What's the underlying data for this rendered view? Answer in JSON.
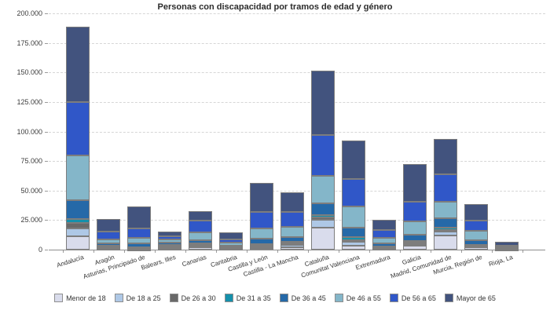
{
  "title": "Personas con discapacidad por tramos de edad y género",
  "chart_data": {
    "type": "bar",
    "stacked": true,
    "title": "Personas con discapacidad por tramos de edad y género",
    "xlabel": "",
    "ylabel": "",
    "ylim": [
      0,
      200000
    ],
    "ytick_step": 25000,
    "ytick_labels": [
      "0",
      "25.000",
      "50.000",
      "75.000",
      "100.000",
      "125.000",
      "150.000",
      "175.000",
      "200.000"
    ],
    "grid": "horizontal-dashed",
    "legend_position": "bottom",
    "categories": [
      "Andalucía",
      "Aragón",
      "Asturias, Principado de",
      "Balears, Illes",
      "Canarias",
      "Cantabria",
      "Castilla y León",
      "Castilla - La Mancha",
      "Cataluña",
      "Comunitat Valenciana",
      "Extremadura",
      "Galicia",
      "Madrid, Comunidad de",
      "Murcia, Región de",
      "Rioja, La"
    ],
    "series": [
      {
        "name": "Menor de 18",
        "color": "#d9dcec",
        "values": [
          11300,
          800,
          150,
          660,
          1800,
          900,
          1000,
          2000,
          18600,
          3100,
          760,
          3540,
          11960,
          2000,
          150
        ]
      },
      {
        "name": "De 18 a 25",
        "color": "#aec8e6",
        "values": [
          6600,
          700,
          150,
          1530,
          1070,
          500,
          1000,
          1800,
          6400,
          3350,
          600,
          1330,
          3120,
          700,
          150
        ]
      },
      {
        "name": "De 26 a 30",
        "color": "#696969",
        "values": [
          4700,
          900,
          1100,
          800,
          1130,
          400,
          1300,
          1330,
          2000,
          1750,
          700,
          1100,
          1720,
          750,
          200
        ]
      },
      {
        "name": "De 31 a 35",
        "color": "#1590ab",
        "values": [
          3300,
          800,
          850,
          800,
          1130,
          400,
          1300,
          1330,
          2200,
          2200,
          600,
          1130,
          1800,
          750,
          200
        ]
      },
      {
        "name": "De 36 a 45",
        "color": "#2569a8",
        "values": [
          16000,
          1800,
          2900,
          2200,
          2650,
          1330,
          4450,
          3980,
          10000,
          8200,
          2640,
          5330,
          7780,
          3990,
          500
        ]
      },
      {
        "name": "De 46 a 55",
        "color": "#84b6c9",
        "values": [
          37900,
          3800,
          4850,
          2460,
          7050,
          2460,
          8850,
          8840,
          23300,
          17740,
          4470,
          11270,
          14360,
          7510,
          900
        ]
      },
      {
        "name": "De 56 a 65",
        "color": "#3057c8",
        "values": [
          45200,
          6300,
          7800,
          3060,
          9570,
          2650,
          14000,
          12630,
          34700,
          23260,
          6630,
          17040,
          23260,
          8850,
          1540
        ]
      },
      {
        "name": "Mayor de 65",
        "color": "#42537e",
        "values": [
          63800,
          10800,
          18700,
          4000,
          8170,
          6200,
          24600,
          16600,
          54000,
          32800,
          8850,
          31460,
          29900,
          14200,
          3300
        ]
      }
    ]
  }
}
